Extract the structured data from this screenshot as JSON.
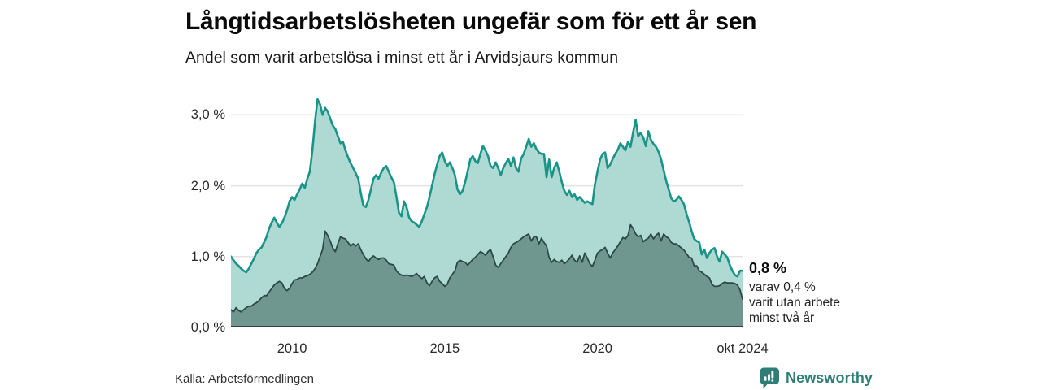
{
  "header": {
    "title": "Långtidsarbetslösheten ungefär som för ett år sen",
    "subtitle": "Andel som varit arbetslösa i minst ett år i Arvidsjaurs kommun"
  },
  "annotation": {
    "headline": "0,8 %",
    "lines": [
      "varav 0,4 %",
      "varit utan arbete",
      "minst två år"
    ]
  },
  "footer": {
    "source": "Källa: Arbetsförmedlingen",
    "brand": "Newsworthy"
  },
  "colors": {
    "line_total": "#1a9488",
    "fill_total": "#aedad3",
    "line_two_years": "#2c4a43",
    "fill_two_years": "#6f978f",
    "gridline": "#e3e3e3",
    "axis_line": "#3c3c3c",
    "brand_teal": "#2e7d77",
    "text_dark": "#0a0a0a",
    "text_gray": "#2b2b2b"
  },
  "chart_data": {
    "type": "area",
    "title": "Långtidsarbetslösheten ungefär som för ett år sen",
    "subtitle": "Andel som varit arbetslösa i minst ett år i Arvidsjaurs kommun",
    "unit": "%",
    "resolution": "monthly",
    "x_start": "2008-01",
    "x_end": "2024-10",
    "ylim": [
      0,
      3.36
    ],
    "grid": "horizontal",
    "legend_position": "none",
    "y_ticks": [
      {
        "value": 0,
        "label": "0,0 %"
      },
      {
        "value": 1,
        "label": "1,0 %"
      },
      {
        "value": 2,
        "label": "2,0 %"
      },
      {
        "value": 3,
        "label": "3,0 %"
      }
    ],
    "x_ticks": [
      {
        "index": 24,
        "label": "2010"
      },
      {
        "index": 84,
        "label": "2015"
      },
      {
        "index": 144,
        "label": "2020"
      },
      {
        "index": 201,
        "label": "okt 2024"
      }
    ],
    "series": [
      {
        "name": "Arbetslösa minst ett år",
        "last_value_label": "0,8 %",
        "values": [
          1.0,
          0.95,
          0.9,
          0.87,
          0.83,
          0.8,
          0.78,
          0.83,
          0.9,
          0.97,
          1.05,
          1.1,
          1.13,
          1.2,
          1.28,
          1.4,
          1.48,
          1.55,
          1.48,
          1.42,
          1.47,
          1.55,
          1.65,
          1.78,
          1.84,
          1.8,
          1.88,
          1.95,
          2.03,
          1.97,
          2.1,
          2.2,
          2.5,
          2.9,
          3.22,
          3.15,
          3.0,
          3.1,
          3.05,
          2.95,
          2.85,
          2.8,
          2.7,
          2.6,
          2.62,
          2.5,
          2.4,
          2.32,
          2.25,
          2.18,
          2.1,
          1.9,
          1.72,
          1.7,
          1.8,
          1.95,
          2.1,
          2.15,
          2.1,
          2.18,
          2.25,
          2.28,
          2.2,
          2.12,
          2.05,
          1.85,
          1.62,
          1.57,
          1.78,
          1.7,
          1.55,
          1.5,
          1.48,
          1.45,
          1.42,
          1.5,
          1.6,
          1.7,
          1.84,
          2.0,
          2.16,
          2.3,
          2.42,
          2.47,
          2.35,
          2.28,
          2.33,
          2.25,
          2.15,
          1.95,
          1.88,
          1.93,
          2.05,
          2.2,
          2.37,
          2.42,
          2.35,
          2.32,
          2.45,
          2.56,
          2.5,
          2.42,
          2.28,
          2.25,
          2.33,
          2.25,
          2.15,
          2.25,
          2.32,
          2.38,
          2.28,
          2.4,
          2.25,
          2.2,
          2.38,
          2.45,
          2.55,
          2.66,
          2.55,
          2.6,
          2.52,
          2.47,
          2.45,
          2.45,
          2.12,
          2.37,
          2.12,
          2.25,
          2.33,
          2.2,
          2.05,
          1.93,
          1.87,
          1.93,
          1.84,
          1.88,
          1.8,
          1.84,
          1.8,
          1.76,
          1.78,
          1.76,
          1.74,
          2.02,
          2.2,
          2.37,
          2.45,
          2.47,
          2.25,
          2.3,
          2.38,
          2.45,
          2.51,
          2.6,
          2.55,
          2.5,
          2.62,
          2.55,
          2.75,
          2.93,
          2.7,
          2.75,
          2.68,
          2.56,
          2.77,
          2.65,
          2.59,
          2.55,
          2.48,
          2.37,
          2.22,
          2.07,
          1.95,
          1.82,
          1.78,
          1.8,
          1.85,
          1.8,
          1.74,
          1.6,
          1.49,
          1.36,
          1.25,
          1.22,
          1.2,
          1.03,
          1.1,
          0.98,
          1.05,
          1.1,
          1.12,
          1.0,
          0.93,
          1.07,
          1.03,
          0.99,
          0.88,
          0.8,
          0.74,
          0.72,
          0.8,
          0.8
        ]
      },
      {
        "name": "varav utan arbete minst två år",
        "last_value_label": "0,4 %",
        "values": [
          0.25,
          0.22,
          0.28,
          0.24,
          0.22,
          0.25,
          0.28,
          0.3,
          0.3,
          0.33,
          0.35,
          0.38,
          0.42,
          0.45,
          0.45,
          0.5,
          0.55,
          0.6,
          0.63,
          0.65,
          0.63,
          0.55,
          0.52,
          0.55,
          0.62,
          0.67,
          0.68,
          0.7,
          0.7,
          0.72,
          0.73,
          0.75,
          0.78,
          0.83,
          0.9,
          1.0,
          1.1,
          1.36,
          1.3,
          1.22,
          1.12,
          1.07,
          1.18,
          1.28,
          1.26,
          1.25,
          1.2,
          1.15,
          1.18,
          1.15,
          1.18,
          1.1,
          1.03,
          0.97,
          0.93,
          0.98,
          1.01,
          0.98,
          0.96,
          0.98,
          0.98,
          0.95,
          0.9,
          0.89,
          0.88,
          0.8,
          0.76,
          0.74,
          0.73,
          0.74,
          0.73,
          0.72,
          0.74,
          0.76,
          0.72,
          0.69,
          0.72,
          0.63,
          0.59,
          0.65,
          0.7,
          0.72,
          0.65,
          0.62,
          0.58,
          0.61,
          0.7,
          0.75,
          0.8,
          0.92,
          0.95,
          0.93,
          0.92,
          0.88,
          0.92,
          0.96,
          0.99,
          1.03,
          1.07,
          1.05,
          1.02,
          1.07,
          1.1,
          1.0,
          0.88,
          0.85,
          0.9,
          0.95,
          1.0,
          1.05,
          1.13,
          1.18,
          1.2,
          1.22,
          1.25,
          1.28,
          1.3,
          1.32,
          1.22,
          1.28,
          1.28,
          1.18,
          1.26,
          1.2,
          1.15,
          0.99,
          0.92,
          0.96,
          0.93,
          0.92,
          0.95,
          0.9,
          0.93,
          0.97,
          1.02,
          0.95,
          0.92,
          1.01,
          0.92,
          1.05,
          0.98,
          0.9,
          0.86,
          0.95,
          1.05,
          1.08,
          1.1,
          1.13,
          1.05,
          0.98,
          1.05,
          1.1,
          1.15,
          1.21,
          1.27,
          1.25,
          1.3,
          1.45,
          1.4,
          1.32,
          1.28,
          1.3,
          1.21,
          1.24,
          1.26,
          1.32,
          1.25,
          1.3,
          1.33,
          1.22,
          1.32,
          1.28,
          1.26,
          1.2,
          1.18,
          1.18,
          1.15,
          1.12,
          1.09,
          1.04,
          0.99,
          0.98,
          0.87,
          0.87,
          0.8,
          0.78,
          0.75,
          0.72,
          0.7,
          0.61,
          0.58,
          0.58,
          0.59,
          0.62,
          0.64,
          0.63,
          0.63,
          0.63,
          0.62,
          0.6,
          0.53,
          0.4
        ]
      }
    ]
  }
}
